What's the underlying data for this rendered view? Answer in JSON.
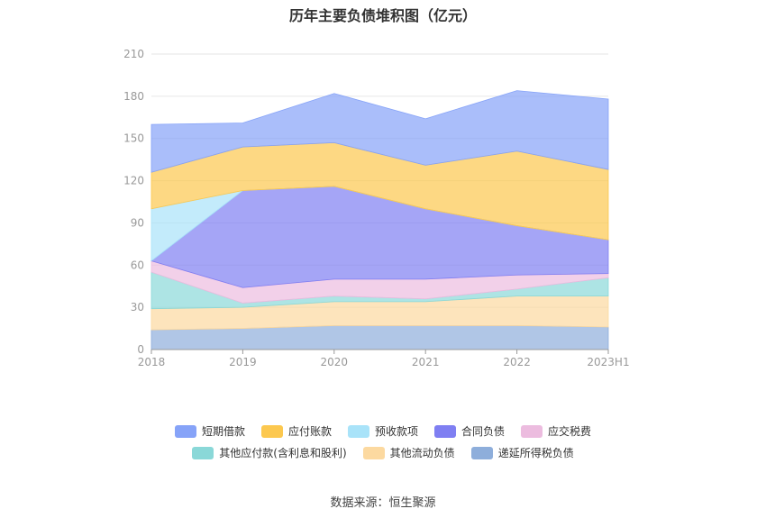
{
  "chart_data": {
    "type": "area",
    "stacked": true,
    "title": "历年主要负债堆积图（亿元）",
    "categories": [
      "2018",
      "2019",
      "2020",
      "2021",
      "2022",
      "2023H1"
    ],
    "ylim": [
      0,
      210
    ],
    "yticks": [
      0,
      30,
      60,
      90,
      120,
      150,
      180,
      210
    ],
    "grid": true,
    "legend_position": "bottom",
    "series": [
      {
        "name": "递延所得税负债",
        "color": "#8eaedb",
        "values": [
          14,
          15,
          17,
          17,
          17,
          16
        ]
      },
      {
        "name": "其他流动负债",
        "color": "#fcd9a0",
        "values": [
          15,
          15,
          17,
          17,
          21,
          22
        ]
      },
      {
        "name": "其他应付款(含利息和股利)",
        "color": "#8ad8d8",
        "values": [
          26,
          3,
          4,
          2,
          5,
          13
        ]
      },
      {
        "name": "应交税费",
        "color": "#ecbcdf",
        "values": [
          8,
          11,
          12,
          14,
          10,
          3
        ]
      },
      {
        "name": "合同负债",
        "color": "#7f7ff2",
        "values": [
          0,
          69,
          66,
          50,
          35,
          24
        ]
      },
      {
        "name": "预收款项",
        "color": "#a9e3f9",
        "values": [
          37,
          0,
          0,
          0,
          0,
          0
        ]
      },
      {
        "name": "应付账款",
        "color": "#fcc84f",
        "values": [
          26,
          31,
          31,
          31,
          53,
          50
        ]
      },
      {
        "name": "短期借款",
        "color": "#86a3f8",
        "values": [
          34,
          17,
          35,
          33,
          43,
          50
        ]
      }
    ],
    "legend_order": [
      "短期借款",
      "应付账款",
      "预收款项",
      "合同负债",
      "应交税费",
      "其他应付款(含利息和股利)",
      "其他流动负债",
      "递延所得税负债"
    ]
  },
  "source": "数据来源：恒生聚源"
}
